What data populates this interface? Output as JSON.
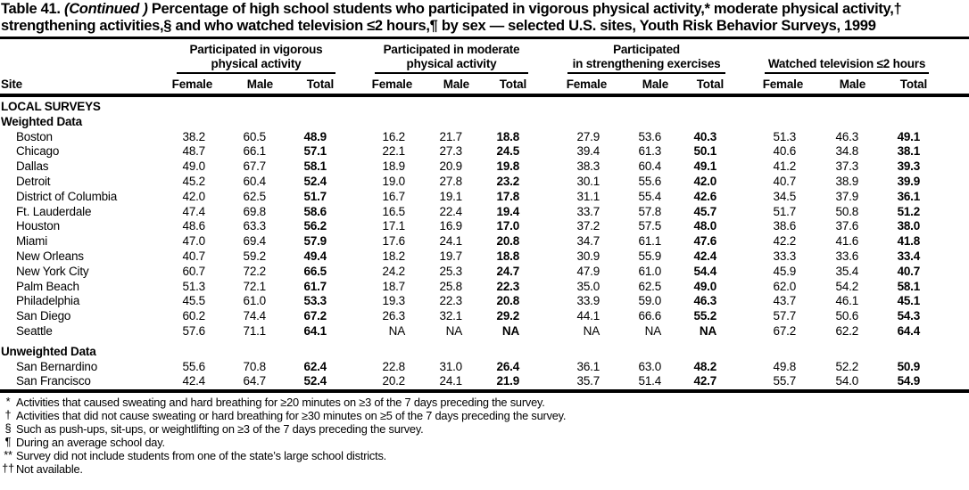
{
  "title": {
    "label": "Table 41.",
    "continued": "(Continued )",
    "rest": "Percentage of high school students who participated in vigorous physical activity,* moderate physical activity,† strengthening activities,§ and who watched television ≤2 hours,¶ by sex — selected U.S. sites, Youth Risk Behavior Surveys, 1999"
  },
  "table": {
    "site_header": "Site",
    "groups": [
      {
        "line1": "Participated in vigorous",
        "line2": "physical activity"
      },
      {
        "line1": "Participated in moderate",
        "line2": "physical activity"
      },
      {
        "line1": "Participated",
        "line2": "in strengthening exercises"
      },
      {
        "line1": "",
        "line2": "Watched television ≤2 hours"
      }
    ],
    "sub_headers": [
      "Female",
      "Male",
      "Total"
    ],
    "rows": [
      {
        "type": "section",
        "label": "LOCAL SURVEYS"
      },
      {
        "type": "section",
        "label": "Weighted Data"
      },
      {
        "type": "data",
        "site": "Boston",
        "values": [
          "38.2",
          "60.5",
          "48.9",
          "16.2",
          "21.7",
          "18.8",
          "27.9",
          "53.6",
          "40.3",
          "51.3",
          "46.3",
          "49.1"
        ]
      },
      {
        "type": "data",
        "site": "Chicago",
        "values": [
          "48.7",
          "66.1",
          "57.1",
          "22.1",
          "27.3",
          "24.5",
          "39.4",
          "61.3",
          "50.1",
          "40.6",
          "34.8",
          "38.1"
        ]
      },
      {
        "type": "data",
        "site": "Dallas",
        "values": [
          "49.0",
          "67.7",
          "58.1",
          "18.9",
          "20.9",
          "19.8",
          "38.3",
          "60.4",
          "49.1",
          "41.2",
          "37.3",
          "39.3"
        ]
      },
      {
        "type": "data",
        "site": "Detroit",
        "values": [
          "45.2",
          "60.4",
          "52.4",
          "19.0",
          "27.8",
          "23.2",
          "30.1",
          "55.6",
          "42.0",
          "40.7",
          "38.9",
          "39.9"
        ]
      },
      {
        "type": "data",
        "site": "District of Columbia",
        "values": [
          "42.0",
          "62.5",
          "51.7",
          "16.7",
          "19.1",
          "17.8",
          "31.1",
          "55.4",
          "42.6",
          "34.5",
          "37.9",
          "36.1"
        ]
      },
      {
        "type": "data",
        "site": "Ft. Lauderdale",
        "values": [
          "47.4",
          "69.8",
          "58.6",
          "16.5",
          "22.4",
          "19.4",
          "33.7",
          "57.8",
          "45.7",
          "51.7",
          "50.8",
          "51.2"
        ]
      },
      {
        "type": "data",
        "site": "Houston",
        "values": [
          "48.6",
          "63.3",
          "56.2",
          "17.1",
          "16.9",
          "17.0",
          "37.2",
          "57.5",
          "48.0",
          "38.6",
          "37.6",
          "38.0"
        ]
      },
      {
        "type": "data",
        "site": "Miami",
        "values": [
          "47.0",
          "69.4",
          "57.9",
          "17.6",
          "24.1",
          "20.8",
          "34.7",
          "61.1",
          "47.6",
          "42.2",
          "41.6",
          "41.8"
        ]
      },
      {
        "type": "data",
        "site": "New Orleans",
        "values": [
          "40.7",
          "59.2",
          "49.4",
          "18.2",
          "19.7",
          "18.8",
          "30.9",
          "55.9",
          "42.4",
          "33.3",
          "33.6",
          "33.4"
        ]
      },
      {
        "type": "data",
        "site": "New York City",
        "values": [
          "60.7",
          "72.2",
          "66.5",
          "24.2",
          "25.3",
          "24.7",
          "47.9",
          "61.0",
          "54.4",
          "45.9",
          "35.4",
          "40.7"
        ]
      },
      {
        "type": "data",
        "site": "Palm Beach",
        "values": [
          "51.3",
          "72.1",
          "61.7",
          "18.7",
          "25.8",
          "22.3",
          "35.0",
          "62.5",
          "49.0",
          "62.0",
          "54.2",
          "58.1"
        ]
      },
      {
        "type": "data",
        "site": "Philadelphia",
        "values": [
          "45.5",
          "61.0",
          "53.3",
          "19.3",
          "22.3",
          "20.8",
          "33.9",
          "59.0",
          "46.3",
          "43.7",
          "46.1",
          "45.1"
        ]
      },
      {
        "type": "data",
        "site": "San Diego",
        "values": [
          "60.2",
          "74.4",
          "67.2",
          "26.3",
          "32.1",
          "29.2",
          "44.1",
          "66.6",
          "55.2",
          "57.7",
          "50.6",
          "54.3"
        ]
      },
      {
        "type": "data",
        "site": "Seattle",
        "values": [
          "57.6",
          "71.1",
          "64.1",
          "NA",
          "NA",
          "NA",
          "NA",
          "NA",
          "NA",
          "67.2",
          "62.2",
          "64.4"
        ]
      },
      {
        "type": "section",
        "label": "Unweighted Data",
        "spaced": true
      },
      {
        "type": "data",
        "site": "San Bernardino",
        "values": [
          "55.6",
          "70.8",
          "62.4",
          "22.8",
          "31.0",
          "26.4",
          "36.1",
          "63.0",
          "48.2",
          "49.8",
          "52.2",
          "50.9"
        ]
      },
      {
        "type": "data",
        "site": "San Francisco",
        "values": [
          "42.4",
          "64.7",
          "52.4",
          "20.2",
          "24.1",
          "21.9",
          "35.7",
          "51.4",
          "42.7",
          "55.7",
          "54.0",
          "54.9"
        ]
      }
    ]
  },
  "footnotes": [
    {
      "marker": "*",
      "text": "Activities that caused sweating and hard breathing for ≥20 minutes on ≥3 of the 7 days preceding the survey."
    },
    {
      "marker": "†",
      "text": "Activities that did not cause sweating or hard breathing for ≥30 minutes on ≥5 of the 7 days preceding the survey."
    },
    {
      "marker": "§",
      "text": "Such as push-ups, sit-ups, or weightlifting on ≥3 of the 7 days preceding the survey."
    },
    {
      "marker": "¶",
      "text": "During an average school day."
    },
    {
      "marker": "**",
      "text": "Survey did not include students from one of the state’s large school districts."
    },
    {
      "marker": "††",
      "text": "Not available."
    }
  ]
}
